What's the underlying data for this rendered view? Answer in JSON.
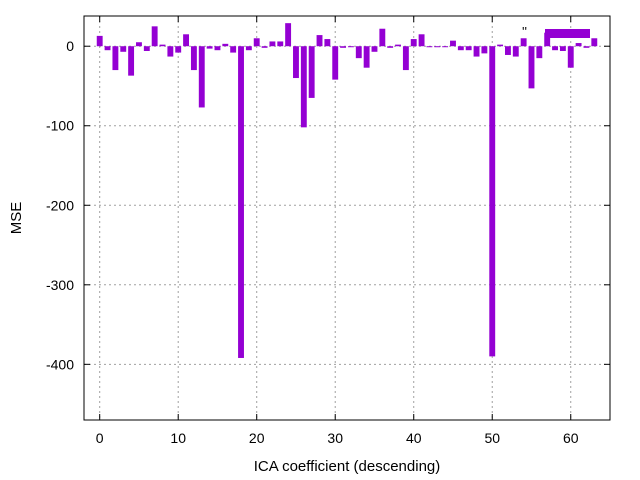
{
  "chart_data": {
    "type": "bar",
    "title": "",
    "xlabel": "ICA coefficient (descending)",
    "ylabel": "MSE",
    "xlim": [
      -2,
      65
    ],
    "ylim": [
      -470,
      38
    ],
    "xticks": [
      0,
      10,
      20,
      30,
      40,
      50,
      60
    ],
    "yticks": [
      0,
      -100,
      -200,
      -300,
      -400
    ],
    "grid": true,
    "legend": {
      "placement": "top-right",
      "entries": [
        {
          "label": "''",
          "color": "#9400d3"
        }
      ]
    },
    "series": [
      {
        "color": "#9400d3",
        "x": [
          0,
          1,
          2,
          3,
          4,
          5,
          6,
          7,
          8,
          9,
          10,
          11,
          12,
          13,
          14,
          15,
          16,
          17,
          18,
          19,
          20,
          21,
          22,
          23,
          24,
          25,
          26,
          27,
          28,
          29,
          30,
          31,
          32,
          33,
          34,
          35,
          36,
          37,
          38,
          39,
          40,
          41,
          42,
          43,
          44,
          45,
          46,
          47,
          48,
          49,
          50,
          51,
          52,
          53,
          54,
          55,
          56,
          57,
          58,
          59,
          60,
          61,
          62,
          63
        ],
        "values": [
          13,
          -5,
          -30,
          -7,
          -37,
          5,
          -6,
          25,
          2,
          -13,
          -8,
          15,
          -30,
          -77,
          -3,
          -5,
          3,
          -8,
          -392,
          -5,
          10,
          -2,
          6,
          6,
          29,
          -40,
          -102,
          -65,
          14,
          9,
          -42,
          -2,
          -1,
          -15,
          -27,
          -7,
          22,
          -2,
          2,
          -30,
          9,
          15,
          -1,
          -1,
          -1,
          7,
          -5,
          -5,
          -13,
          -9,
          -390,
          2,
          -11,
          -13,
          10,
          -53,
          -15,
          17,
          -5,
          -6,
          -27,
          4,
          -2,
          10
        ]
      }
    ]
  }
}
